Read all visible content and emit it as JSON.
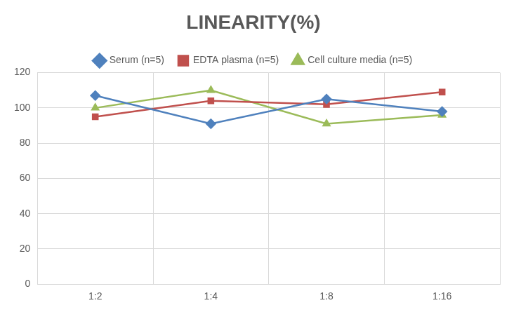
{
  "chart_data": {
    "type": "line",
    "title": "LINEARITY(%)",
    "categories": [
      "1:2",
      "1:4",
      "1:8",
      "1:16"
    ],
    "series": [
      {
        "name": "Serum (n=5)",
        "color": "#4f81bd",
        "marker": "diamond",
        "values": [
          107,
          91,
          105,
          98
        ]
      },
      {
        "name": "EDTA plasma (n=5)",
        "color": "#c0504d",
        "marker": "square",
        "values": [
          95,
          104,
          102,
          109
        ]
      },
      {
        "name": "Cell culture media (n=5)",
        "color": "#9bbb59",
        "marker": "triangle",
        "values": [
          100,
          110,
          91,
          96
        ]
      }
    ],
    "ylim": [
      0,
      120
    ],
    "yticks": [
      0,
      20,
      40,
      60,
      80,
      100,
      120
    ],
    "grid": true,
    "legend": "top"
  }
}
